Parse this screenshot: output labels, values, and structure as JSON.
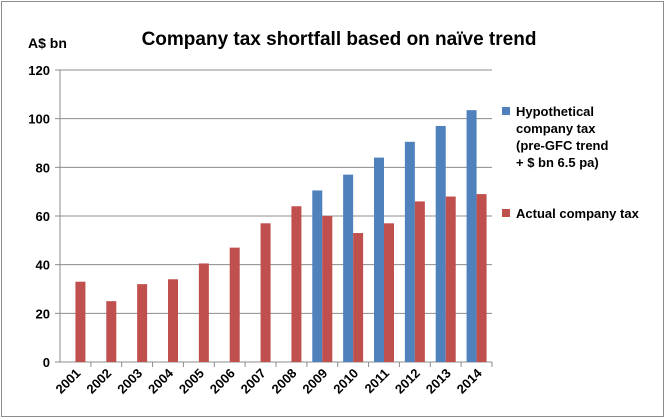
{
  "chart_data": {
    "type": "bar",
    "title": "Company tax shortfall  based on naïve trend",
    "unit_label": "A$ bn",
    "ylim": [
      0,
      120
    ],
    "yticks": [
      "0",
      "20",
      "40",
      "60",
      "80",
      "100",
      "120"
    ],
    "grid": true,
    "legend_position": "right",
    "categories": [
      "2001",
      "2002",
      "2003",
      "2004",
      "2005",
      "2006",
      "2007",
      "2008",
      "2009",
      "2010",
      "2011",
      "2012",
      "2013",
      "2014"
    ],
    "series": [
      {
        "name_lines": [
          "Hypothetical",
          "company tax",
          "(pre-GFC trend",
          "+ $ bn 6.5  pa)"
        ],
        "color": "#4f81bd",
        "values": [
          null,
          null,
          null,
          null,
          null,
          null,
          null,
          null,
          70.5,
          77,
          84,
          90.5,
          97,
          103.5
        ]
      },
      {
        "name_lines": [
          "Actual company tax"
        ],
        "color": "#c0504d",
        "values": [
          33,
          25,
          32,
          34,
          40.5,
          47,
          57,
          64,
          60,
          53,
          57,
          66,
          68,
          69
        ]
      }
    ]
  }
}
